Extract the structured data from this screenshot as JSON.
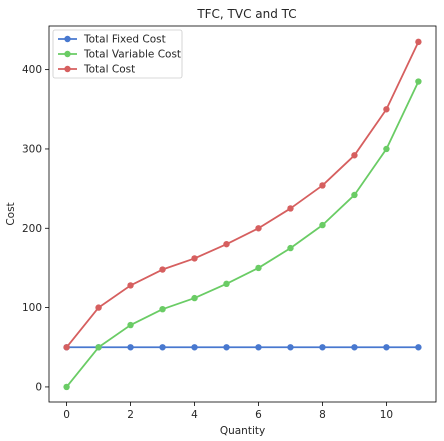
{
  "chart_data": {
    "type": "line",
    "title": "TFC, TVC and TC",
    "xlabel": "Quantity",
    "ylabel": "Cost",
    "x": [
      0,
      1,
      2,
      3,
      4,
      5,
      6,
      7,
      8,
      9,
      10,
      11
    ],
    "xlim": [
      -0.55,
      11.55
    ],
    "ylim": [
      -19,
      455
    ],
    "xticks": [
      0,
      2,
      4,
      6,
      8,
      10
    ],
    "yticks": [
      0,
      100,
      200,
      300,
      400
    ],
    "grid": false,
    "legend_position": "upper-left",
    "series": [
      {
        "name": "Total Fixed Cost",
        "color": "#4878cf",
        "values": [
          50,
          50,
          50,
          50,
          50,
          50,
          50,
          50,
          50,
          50,
          50,
          50
        ]
      },
      {
        "name": "Total Variable Cost",
        "color": "#6acc65",
        "values": [
          0,
          50,
          78,
          98,
          112,
          130,
          150,
          175,
          204,
          242,
          300,
          385
        ]
      },
      {
        "name": "Total Cost",
        "color": "#d65f5f",
        "values": [
          50,
          100,
          128,
          148,
          162,
          180,
          200,
          225,
          254,
          292,
          350,
          435
        ]
      }
    ]
  }
}
